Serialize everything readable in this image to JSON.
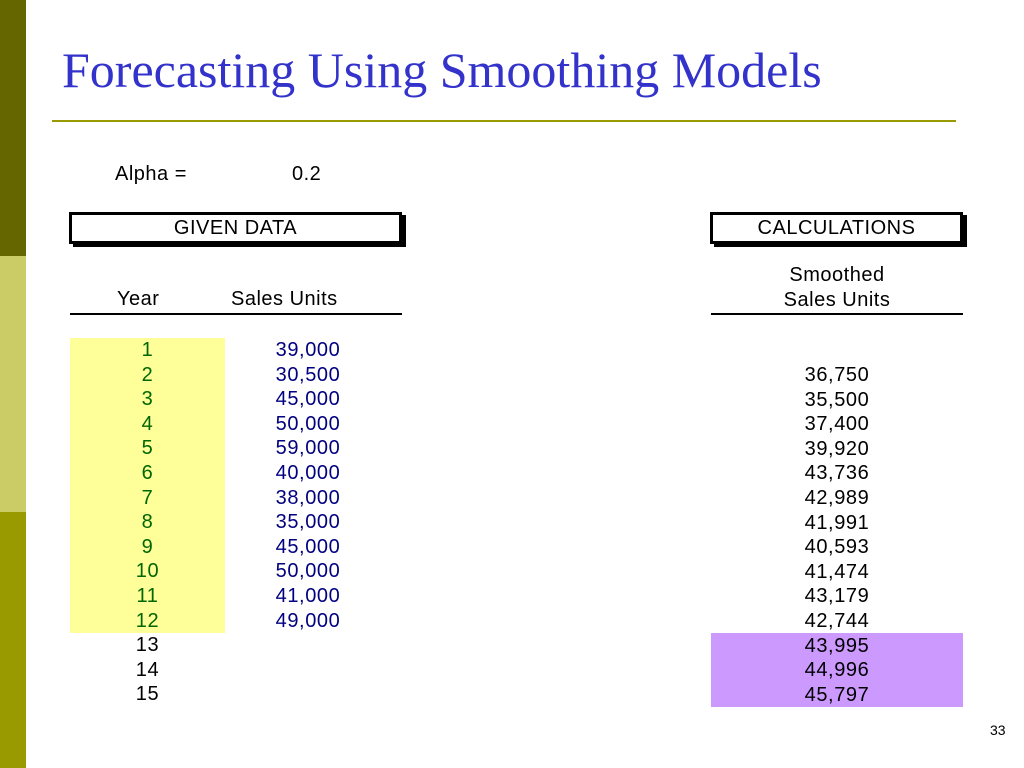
{
  "slide": {
    "title": "Forecasting Using Smoothing Models",
    "page_number": "33"
  },
  "alpha": {
    "label": "Alpha =",
    "value": "0.2"
  },
  "given_data": {
    "header": "GIVEN DATA",
    "col_year": "Year",
    "col_sales": "Sales Units"
  },
  "calculations": {
    "header": "CALCULATIONS",
    "col_smoothed_line1": "Smoothed",
    "col_smoothed_line2": "Sales Units"
  },
  "years": [
    "1",
    "2",
    "3",
    "4",
    "5",
    "6",
    "7",
    "8",
    "9",
    "10",
    "11",
    "12",
    "13",
    "14",
    "15"
  ],
  "sales": [
    "39,000",
    "30,500",
    "45,000",
    "50,000",
    "59,000",
    "40,000",
    "38,000",
    "35,000",
    "45,000",
    "50,000",
    "41,000",
    "49,000"
  ],
  "smoothed": [
    "36,750",
    "35,500",
    "37,400",
    "39,920",
    "43,736",
    "42,989",
    "41,991",
    "40,593",
    "41,474",
    "43,179",
    "42,744",
    "43,995",
    "44,996",
    "45,797"
  ],
  "colors": {
    "title": "#3333cc",
    "given_year_highlight": "#ffff99",
    "forecast_highlight": "#cc99ff",
    "sales_text": "#000080",
    "year_text": "#006600"
  }
}
